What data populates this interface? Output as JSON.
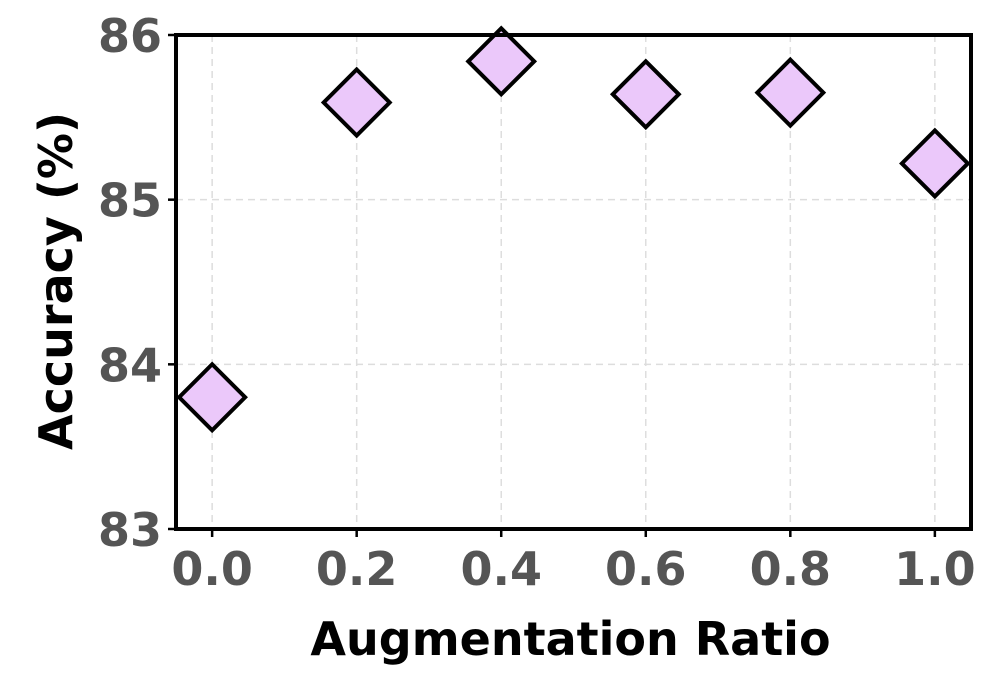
{
  "chart_data": {
    "type": "scatter",
    "title": "",
    "xlabel": "Augmentation Ratio",
    "ylabel": "Accuracy (%)",
    "x": [
      0.0,
      0.2,
      0.4,
      0.6,
      0.8,
      1.0
    ],
    "series": [
      {
        "values": [
          83.8,
          85.59,
          85.84,
          85.64,
          85.65,
          85.22
        ],
        "color": "#ebc8fa",
        "edge_color": "#000000",
        "marker": "diamond"
      }
    ],
    "xticks": [
      "0.0",
      "0.2",
      "0.4",
      "0.6",
      "0.8",
      "1.0"
    ],
    "yticks": [
      "83",
      "84",
      "85",
      "86"
    ],
    "xlim": [
      -0.05,
      1.05
    ],
    "ylim": [
      83,
      86
    ],
    "grid": true
  }
}
